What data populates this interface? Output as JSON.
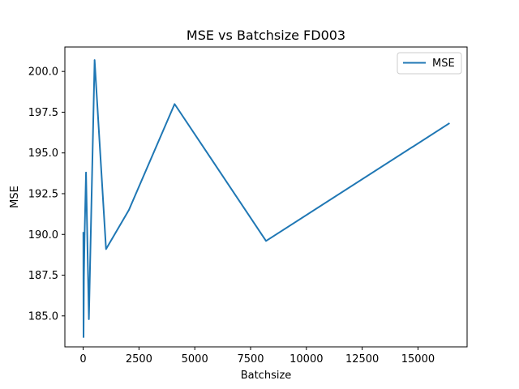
{
  "chart_data": {
    "type": "line",
    "title": "MSE vs Batchsize FD003",
    "xlabel": "Batchsize",
    "ylabel": "MSE",
    "xlim": [
      -820,
      17200
    ],
    "ylim": [
      183.1,
      201.5
    ],
    "xticks": [
      0,
      2500,
      5000,
      7500,
      10000,
      12500,
      15000
    ],
    "xtick_labels": [
      "0",
      "2500",
      "5000",
      "7500",
      "10000",
      "12500",
      "15000"
    ],
    "yticks": [
      185.0,
      187.5,
      190.0,
      192.5,
      195.0,
      197.5,
      200.0
    ],
    "ytick_labels": [
      "185.0",
      "187.5",
      "190.0",
      "192.5",
      "195.0",
      "197.5",
      "200.0"
    ],
    "grid": false,
    "legend_position": "top-right",
    "series": [
      {
        "name": "MSE",
        "color": "#1f77b4",
        "x": [
          8,
          16,
          32,
          64,
          128,
          256,
          512,
          1024,
          2048,
          4096,
          8192,
          16384
        ],
        "y": [
          190.1,
          183.7,
          187.3,
          190.0,
          193.8,
          184.8,
          200.7,
          189.1,
          191.5,
          198.0,
          189.6,
          196.8
        ]
      }
    ]
  }
}
